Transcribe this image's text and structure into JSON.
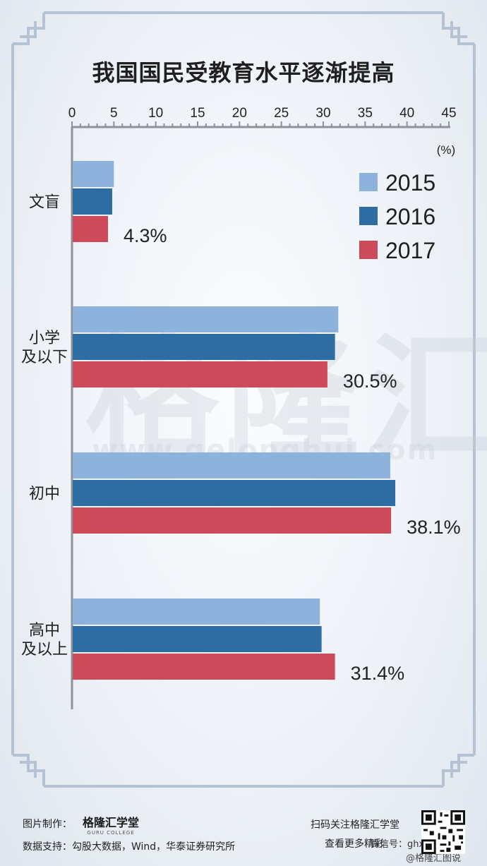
{
  "chart_data": {
    "type": "bar",
    "orientation": "horizontal",
    "title": "我国国民受教育水平逐渐提高",
    "unit_label": "(%)",
    "xlim": [
      0,
      45
    ],
    "x_ticks": [
      0,
      5,
      10,
      15,
      20,
      25,
      30,
      35,
      40,
      45
    ],
    "categories": [
      {
        "label_lines": [
          "文盲"
        ]
      },
      {
        "label_lines": [
          "小学",
          "及以下"
        ]
      },
      {
        "label_lines": [
          "初中"
        ]
      },
      {
        "label_lines": [
          "高中",
          "及以上"
        ]
      }
    ],
    "series": [
      {
        "name": "2015",
        "color": "#8db3dc",
        "values": [
          5.0,
          31.8,
          38.0,
          29.6
        ]
      },
      {
        "name": "2016",
        "color": "#2e6da4",
        "values": [
          4.8,
          31.4,
          38.6,
          29.8
        ]
      },
      {
        "name": "2017",
        "color": "#cc4a5a",
        "values": [
          4.3,
          30.5,
          38.1,
          31.4
        ]
      }
    ],
    "data_labels": [
      "4.3%",
      "30.5%",
      "38.1%",
      "31.4%"
    ],
    "legend_position": "top-right",
    "grid": false
  },
  "footer": {
    "made_by_label": "图片制作：",
    "brand_name": "格隆汇学堂",
    "brand_sub": "GURU COLLEGE",
    "source_label": "数据支持：勾股大数据，Wind，华泰证券研究所",
    "scan_line1": "扫码关注格隆汇学堂",
    "scan_line2": "查看更多精彩",
    "wechat_id": "微信号：ghxzppw",
    "weibo_handle": "@格隆汇图说"
  },
  "watermark": {
    "brand": "格隆汇",
    "url": "www.gelonghui.com"
  }
}
